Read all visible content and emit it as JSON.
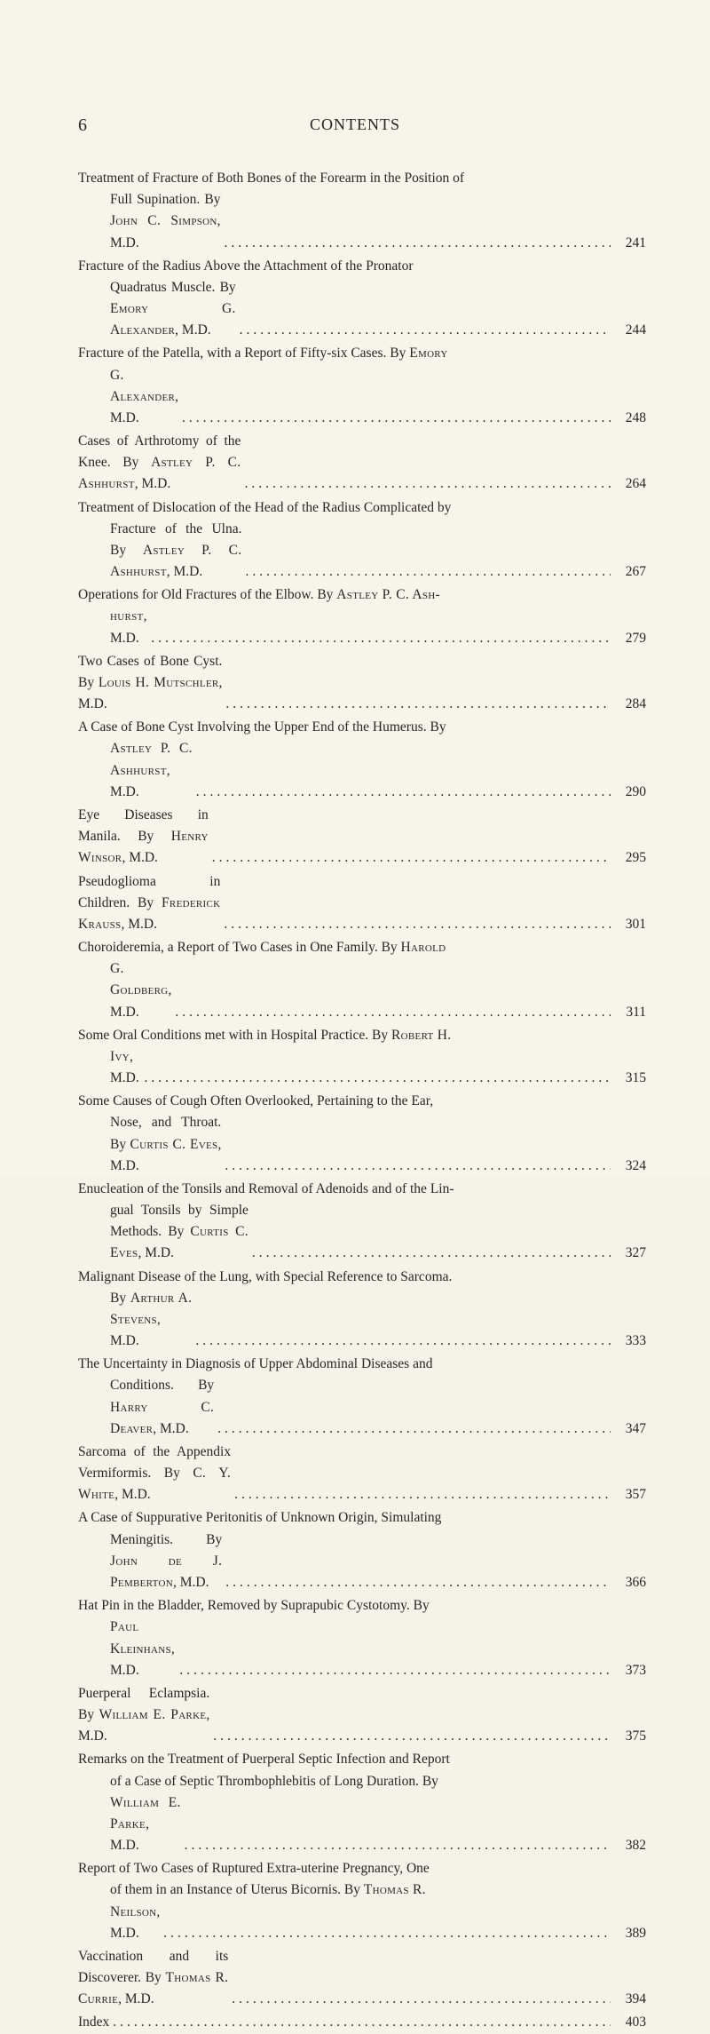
{
  "header": {
    "page_number": "6",
    "title": "CONTENTS"
  },
  "leader_char": ".",
  "entries": [
    {
      "lines": [
        "Treatment of Fracture of Both Bones of the Forearm in the Position of",
        "Full Supination.  By <sc>John C. Simpson</sc>, M.D."
      ],
      "page": "241"
    },
    {
      "lines": [
        "Fracture of the Radius Above the Attachment of the Pronator",
        "Quadratus Muscle.  By <sc>Emory G. Alexander</sc>, M.D."
      ],
      "page": "244"
    },
    {
      "lines": [
        "Fracture of the Patella, with a Report of Fifty-six Cases.  By <sc>Emory</sc>",
        "<sc>G. Alexander</sc>, M.D."
      ],
      "page": "248"
    },
    {
      "lines": [
        "Cases of Arthrotomy of the Knee.  By <sc>Astley P. C. Ashhurst</sc>, M.D."
      ],
      "page": "264"
    },
    {
      "lines": [
        "Treatment of Dislocation of the Head of the Radius Complicated by",
        "Fracture of the Ulna.  By <sc>Astley P. C. Ashhurst</sc>, M.D."
      ],
      "page": "267"
    },
    {
      "lines": [
        "Operations for Old Fractures of the Elbow.  By <sc>Astley P. C. Ash-</sc>",
        "<sc>hurst</sc>, M.D."
      ],
      "page": "279"
    },
    {
      "lines": [
        "Two Cases of Bone Cyst.  By <sc>Louis H. Mutschler</sc>, M.D."
      ],
      "page": "284"
    },
    {
      "lines": [
        "A Case of Bone Cyst Involving the Upper End of the Humerus.  By",
        "<sc>Astley P. C. Ashhurst</sc>, M.D."
      ],
      "page": "290"
    },
    {
      "lines": [
        "Eye Diseases in Manila.  By <sc>Henry Winsor</sc>, M.D."
      ],
      "page": "295"
    },
    {
      "lines": [
        "Pseudoglioma in Children.  By <sc>Frederick Krauss</sc>, M.D."
      ],
      "page": "301"
    },
    {
      "lines": [
        "Choroideremia, a Report of Two Cases in One Family.  By <sc>Harold</sc>",
        "<sc>G. Goldberg</sc>, M.D."
      ],
      "page": "311"
    },
    {
      "lines": [
        "Some Oral Conditions met with in Hospital Practice.  By <sc>Robert H.</sc>",
        "<sc>Ivy</sc>, M.D."
      ],
      "page": "315"
    },
    {
      "lines": [
        "Some Causes of Cough Often Overlooked, Pertaining to the Ear,",
        "Nose, and Throat.  By <sc>Curtis C. Eves</sc>, M.D."
      ],
      "page": "324"
    },
    {
      "lines": [
        "Enucleation of the Tonsils and Removal of Adenoids and of the Lin-",
        "gual Tonsils by Simple Methods.  By <sc>Curtis C. Eves</sc>, M.D."
      ],
      "page": "327"
    },
    {
      "lines": [
        "Malignant Disease of the Lung, with Special Reference to Sarcoma.",
        "By <sc>Arthur A. Stevens</sc>, M.D."
      ],
      "page": "333"
    },
    {
      "lines": [
        "The Uncertainty in Diagnosis of Upper Abdominal Diseases and",
        "Conditions.  By <sc>Harry C. Deaver</sc>, M.D."
      ],
      "page": "347"
    },
    {
      "lines": [
        "Sarcoma of the Appendix Vermiformis.  By <sc>C. Y. White</sc>, M.D."
      ],
      "page": "357"
    },
    {
      "lines": [
        "A Case of Suppurative Peritonitis of Unknown Origin, Simulating",
        "Meningitis.  By <sc>John de J. Pemberton</sc>, M.D."
      ],
      "page": "366"
    },
    {
      "lines": [
        "Hat Pin in the Bladder, Removed by Suprapubic Cystotomy.  By",
        "<sc>Paul Kleinhans</sc>, M.D."
      ],
      "page": "373"
    },
    {
      "lines": [
        "Puerperal Eclampsia.  By <sc>William E. Parke</sc>, M.D."
      ],
      "page": "375"
    },
    {
      "lines": [
        "Remarks on the Treatment of Puerperal Septic Infection and Report",
        "of a Case of Septic Thrombophlebitis of Long Duration.  By",
        "<sc>William E. Parke</sc>, M.D."
      ],
      "page": "382"
    },
    {
      "lines": [
        "Report of Two Cases of Ruptured Extra-uterine Pregnancy, One",
        "of them in an Instance of Uterus Bicornis.  By <sc>Thomas R.</sc>",
        "<sc>Neilson</sc>, M.D."
      ],
      "page": "389"
    },
    {
      "lines": [
        "Vaccination and its Discoverer.  By <sc>Thomas R. Currie</sc>, M.D."
      ],
      "page": "394"
    },
    {
      "lines": [
        "Index"
      ],
      "page": "403"
    }
  ]
}
